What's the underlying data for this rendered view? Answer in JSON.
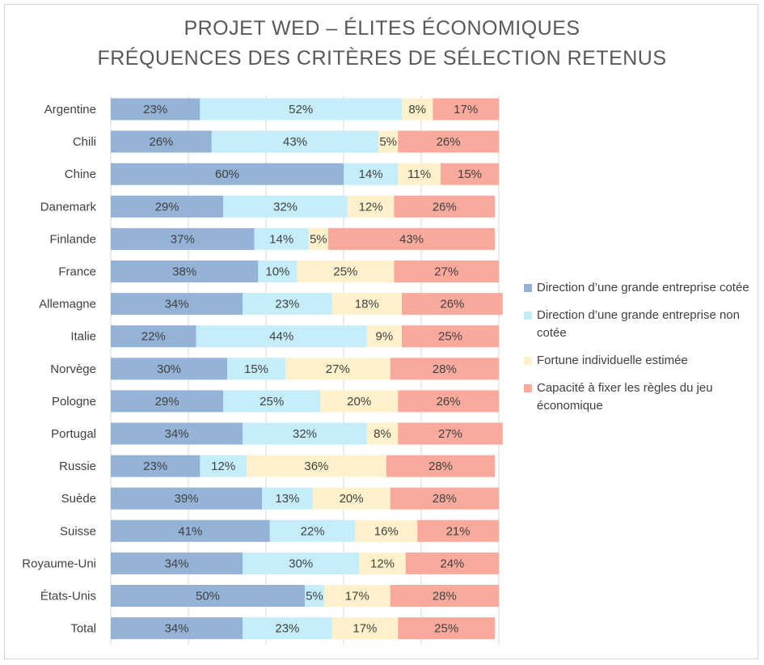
{
  "colors": {
    "background": "#ffffff",
    "text": "#404040",
    "grid": "#d9d9d9",
    "series": [
      "#94B3D7",
      "#C5EEFA",
      "#FEF1CB",
      "#F9AA9C"
    ]
  },
  "chart_data": {
    "type": "bar",
    "orientation": "horizontal",
    "stacked": true,
    "title": "PROJET WED – ÉLITES ÉCONOMIQUES",
    "subtitle": "FRÉQUENCES DES CRITÈRES DE SÉLECTION RETENUS",
    "xlim": [
      0,
      100
    ],
    "grid": true,
    "legend_position": "right",
    "categories": [
      "Argentine",
      "Chili",
      "Chine",
      "Danemark",
      "Finlande",
      "France",
      "Allemagne",
      "Italie",
      "Norvège",
      "Pologne",
      "Portugal",
      "Russie",
      "Suède",
      "Suisse",
      "Royaume-Uni",
      "États-Unis",
      "Total"
    ],
    "series": [
      {
        "name": "Direction d’une grande entreprise cotée",
        "values": [
          23,
          26,
          60,
          29,
          37,
          38,
          34,
          22,
          30,
          29,
          34,
          23,
          39,
          41,
          34,
          50,
          34
        ]
      },
      {
        "name": "Direction d’une grande entreprise non cotée",
        "values": [
          52,
          43,
          14,
          32,
          14,
          10,
          23,
          44,
          15,
          25,
          32,
          12,
          13,
          22,
          30,
          5,
          23
        ]
      },
      {
        "name": "Fortune individuelle estimée",
        "values": [
          8,
          5,
          11,
          12,
          5,
          25,
          18,
          9,
          27,
          20,
          8,
          36,
          20,
          16,
          12,
          17,
          17
        ]
      },
      {
        "name": "Capacité à fixer les règles du jeu économique",
        "values": [
          17,
          26,
          15,
          26,
          43,
          27,
          26,
          25,
          28,
          26,
          27,
          28,
          28,
          21,
          24,
          28,
          25
        ]
      }
    ]
  }
}
